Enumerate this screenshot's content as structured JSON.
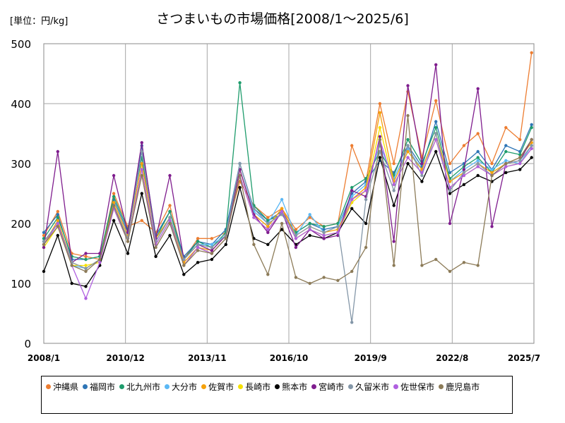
{
  "chart_data": {
    "type": "line",
    "title": "さつまいもの市場価格[2008/1～2025/6]",
    "unit_label": "[単位：円/kg]",
    "xlabel": "",
    "ylabel": "",
    "ylim": [
      0,
      500
    ],
    "yticks": [
      0,
      100,
      200,
      300,
      400,
      500
    ],
    "x_ticks": [
      "2008/1",
      "2010/12",
      "2013/11",
      "2016/10",
      "2019/9",
      "2022/8",
      "2025/7"
    ],
    "x_range": [
      "2008-01",
      "2025-07"
    ],
    "grid": true,
    "legend_position": "bottom",
    "marker": "circle",
    "x": [
      "2008-01",
      "2008-07",
      "2009-01",
      "2009-07",
      "2010-01",
      "2010-07",
      "2011-01",
      "2011-07",
      "2012-01",
      "2012-07",
      "2013-01",
      "2013-07",
      "2014-01",
      "2014-07",
      "2015-01",
      "2015-07",
      "2016-01",
      "2016-07",
      "2017-01",
      "2017-07",
      "2018-01",
      "2018-07",
      "2019-01",
      "2019-07",
      "2020-01",
      "2020-07",
      "2021-01",
      "2021-07",
      "2022-01",
      "2022-07",
      "2023-01",
      "2023-07",
      "2024-01",
      "2024-07",
      "2025-01",
      "2025-06"
    ],
    "series": [
      {
        "name": "沖縄県",
        "color": "#ED7D31",
        "values": [
          180,
          220,
          150,
          145,
          140,
          250,
          195,
          205,
          185,
          230,
          140,
          175,
          175,
          185,
          270,
          230,
          210,
          225,
          190,
          210,
          195,
          200,
          330,
          270,
          400,
          300,
          420,
          310,
          405,
          300,
          330,
          350,
          300,
          360,
          340,
          485
        ]
      },
      {
        "name": "福岡市",
        "color": "#2E75B6",
        "values": [
          185,
          215,
          140,
          140,
          145,
          240,
          185,
          330,
          180,
          220,
          145,
          170,
          165,
          190,
          300,
          225,
          205,
          220,
          185,
          200,
          190,
          195,
          250,
          270,
          305,
          285,
          330,
          295,
          370,
          285,
          300,
          320,
          290,
          330,
          320,
          365
        ]
      },
      {
        "name": "北九州市",
        "color": "#1E9C6C",
        "values": [
          175,
          210,
          145,
          140,
          145,
          245,
          190,
          310,
          175,
          220,
          140,
          170,
          160,
          185,
          435,
          230,
          205,
          215,
          185,
          200,
          195,
          200,
          260,
          275,
          320,
          280,
          340,
          300,
          360,
          275,
          295,
          310,
          285,
          320,
          315,
          360
        ]
      },
      {
        "name": "大分市",
        "color": "#5BB8F5",
        "values": [
          170,
          200,
          130,
          125,
          140,
          230,
          175,
          320,
          170,
          210,
          140,
          165,
          165,
          180,
          300,
          220,
          200,
          240,
          180,
          215,
          185,
          195,
          245,
          265,
          330,
          275,
          325,
          290,
          350,
          270,
          290,
          305,
          290,
          305,
          300,
          330
        ]
      },
      {
        "name": "佐賀市",
        "color": "#F5A10A",
        "values": [
          165,
          205,
          135,
          125,
          140,
          235,
          180,
          300,
          175,
          210,
          135,
          160,
          155,
          180,
          290,
          215,
          195,
          225,
          180,
          195,
          185,
          190,
          240,
          260,
          385,
          270,
          320,
          290,
          350,
          270,
          285,
          300,
          285,
          300,
          310,
          335
        ]
      },
      {
        "name": "長崎市",
        "color": "#F5E000",
        "values": [
          160,
          195,
          130,
          130,
          135,
          225,
          170,
          290,
          165,
          205,
          130,
          160,
          150,
          175,
          280,
          210,
          190,
          220,
          175,
          190,
          180,
          185,
          235,
          255,
          360,
          265,
          310,
          285,
          340,
          260,
          280,
          295,
          280,
          295,
          300,
          325
        ]
      },
      {
        "name": "熊本市",
        "color": "#000000",
        "values": [
          120,
          180,
          100,
          95,
          130,
          205,
          150,
          250,
          145,
          180,
          115,
          135,
          140,
          165,
          260,
          175,
          165,
          190,
          165,
          180,
          175,
          185,
          225,
          200,
          310,
          230,
          300,
          270,
          320,
          250,
          265,
          280,
          270,
          285,
          290,
          310
        ]
      },
      {
        "name": "宮崎市",
        "color": "#7F1D8E",
        "values": [
          160,
          320,
          135,
          150,
          150,
          280,
          185,
          335,
          175,
          280,
          140,
          165,
          155,
          180,
          290,
          215,
          185,
          220,
          160,
          190,
          175,
          180,
          255,
          245,
          345,
          170,
          430,
          300,
          465,
          200,
          290,
          425,
          195,
          300,
          305,
          340
        ]
      },
      {
        "name": "久留米市",
        "color": "#8497A8",
        "values": [
          170,
          200,
          135,
          125,
          140,
          230,
          175,
          320,
          170,
          210,
          140,
          165,
          160,
          180,
          300,
          225,
          200,
          215,
          180,
          195,
          185,
          195,
          35,
          240,
          320,
          255,
          330,
          280,
          350,
          255,
          285,
          300,
          280,
          300,
          305,
          330
        ]
      },
      {
        "name": "佐世保市",
        "color": "#B060E0",
        "values": [
          165,
          200,
          130,
          75,
          135,
          225,
          170,
          290,
          165,
          205,
          130,
          160,
          150,
          175,
          280,
          210,
          190,
          220,
          175,
          190,
          180,
          185,
          240,
          255,
          340,
          265,
          310,
          285,
          340,
          260,
          280,
          295,
          280,
          295,
          300,
          325
        ]
      },
      {
        "name": "鹿児島市",
        "color": "#8C7B58",
        "values": [
          165,
          195,
          130,
          120,
          140,
          230,
          170,
          280,
          160,
          200,
          130,
          155,
          150,
          175,
          280,
          165,
          115,
          200,
          110,
          100,
          110,
          105,
          120,
          160,
          340,
          130,
          380,
          130,
          140,
          120,
          135,
          130,
          280,
          300,
          310,
          340
        ]
      }
    ]
  }
}
